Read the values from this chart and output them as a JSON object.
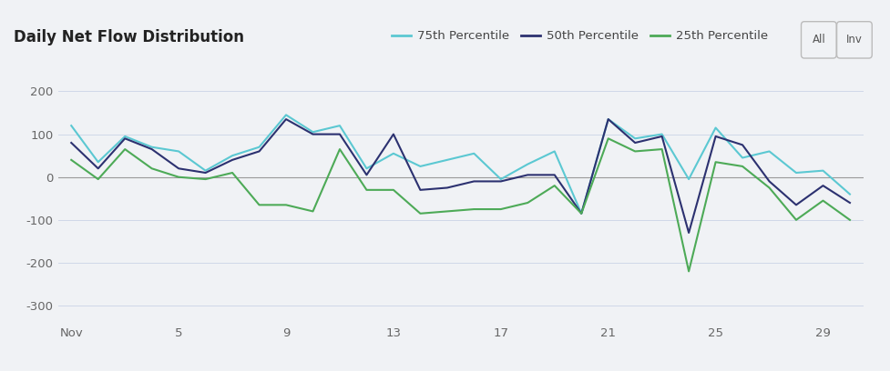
{
  "title": "Daily Net Flow Distribution",
  "background_color": "#f0f2f5",
  "plot_bg_color": "#f0f2f5",
  "x_labels": [
    "Nov",
    "5",
    "9",
    "13",
    "17",
    "21",
    "25",
    "29"
  ],
  "x_ticks": [
    1,
    5,
    9,
    13,
    17,
    21,
    25,
    29
  ],
  "ylim": [
    -340,
    240
  ],
  "yticks": [
    -300,
    -200,
    -100,
    0,
    100,
    200
  ],
  "days": [
    1,
    2,
    3,
    4,
    5,
    6,
    7,
    8,
    9,
    10,
    11,
    12,
    13,
    14,
    15,
    16,
    17,
    18,
    19,
    20,
    21,
    22,
    23,
    24,
    25,
    26,
    27,
    28,
    29,
    30
  ],
  "p75": [
    120,
    35,
    95,
    70,
    60,
    15,
    50,
    70,
    145,
    105,
    120,
    20,
    55,
    25,
    40,
    55,
    -5,
    30,
    60,
    -85,
    135,
    90,
    100,
    -5,
    115,
    45,
    60,
    10,
    15,
    -40
  ],
  "p50": [
    80,
    20,
    90,
    65,
    20,
    10,
    40,
    60,
    135,
    100,
    100,
    5,
    100,
    -30,
    -25,
    -10,
    -10,
    5,
    5,
    -85,
    135,
    80,
    95,
    -130,
    95,
    75,
    -10,
    -65,
    -20,
    -60
  ],
  "p25": [
    40,
    -5,
    65,
    20,
    0,
    -5,
    10,
    -65,
    -65,
    -80,
    65,
    -30,
    -30,
    -85,
    -80,
    -75,
    -75,
    -60,
    -20,
    -85,
    90,
    60,
    65,
    -220,
    35,
    25,
    -25,
    -100,
    -55,
    -100
  ],
  "color_p75": "#5bc8d2",
  "color_p50": "#2c3170",
  "color_p25": "#4daa57",
  "line_width": 1.5,
  "legend_labels": [
    "75th Percentile",
    "50th Percentile",
    "25th Percentile"
  ],
  "button_labels": [
    "All",
    "Inv"
  ],
  "title_fontsize": 12,
  "tick_fontsize": 9.5,
  "legend_fontsize": 9.5
}
